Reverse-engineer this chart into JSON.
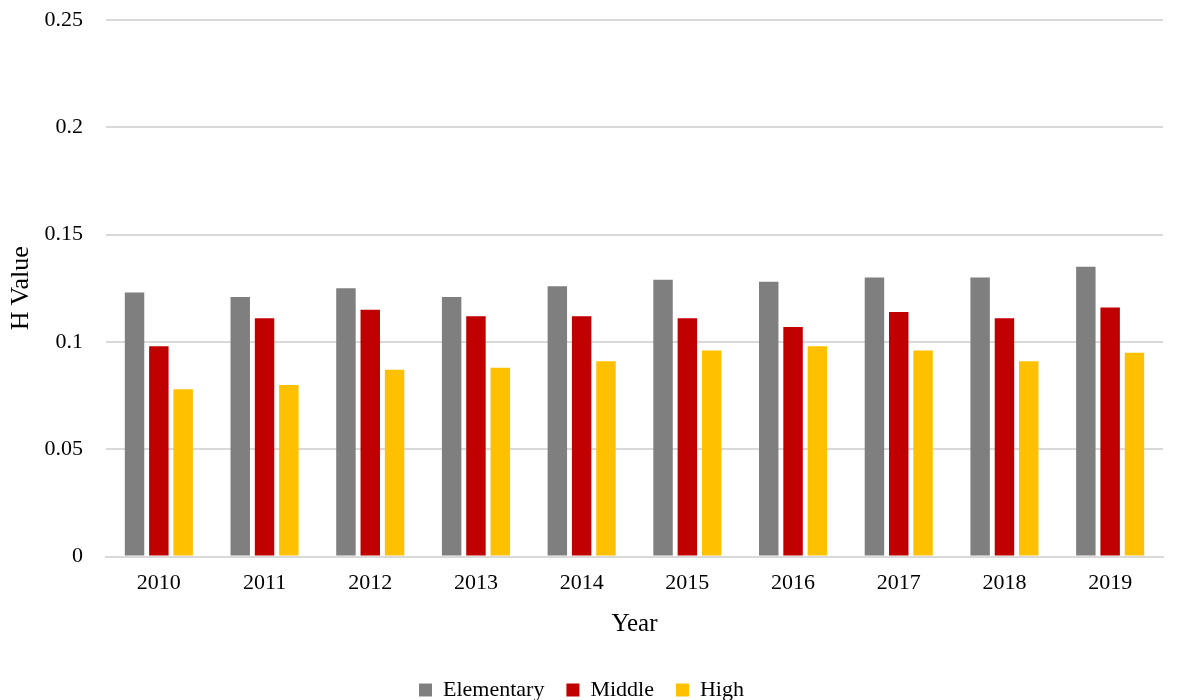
{
  "chart_data": {
    "type": "bar",
    "xlabel": "Year",
    "ylabel": "H Value",
    "categories": [
      "2010",
      "2011",
      "2012",
      "2013",
      "2014",
      "2015",
      "2016",
      "2017",
      "2018",
      "2019"
    ],
    "series": [
      {
        "name": "Elementary",
        "color": "#7f7f7f",
        "values": [
          0.123,
          0.121,
          0.125,
          0.121,
          0.126,
          0.129,
          0.128,
          0.13,
          0.13,
          0.135
        ]
      },
      {
        "name": "Middle",
        "color": "#c00000",
        "values": [
          0.098,
          0.111,
          0.115,
          0.112,
          0.112,
          0.111,
          0.107,
          0.114,
          0.111,
          0.116
        ]
      },
      {
        "name": "High",
        "color": "#ffc000",
        "values": [
          0.078,
          0.08,
          0.087,
          0.088,
          0.091,
          0.096,
          0.098,
          0.096,
          0.091,
          0.095
        ]
      }
    ],
    "ylim": [
      0,
      0.25
    ],
    "yticks": [
      0,
      0.05,
      0.1,
      0.15,
      0.2,
      0.25
    ],
    "grid": "y",
    "legend": "bottom"
  }
}
